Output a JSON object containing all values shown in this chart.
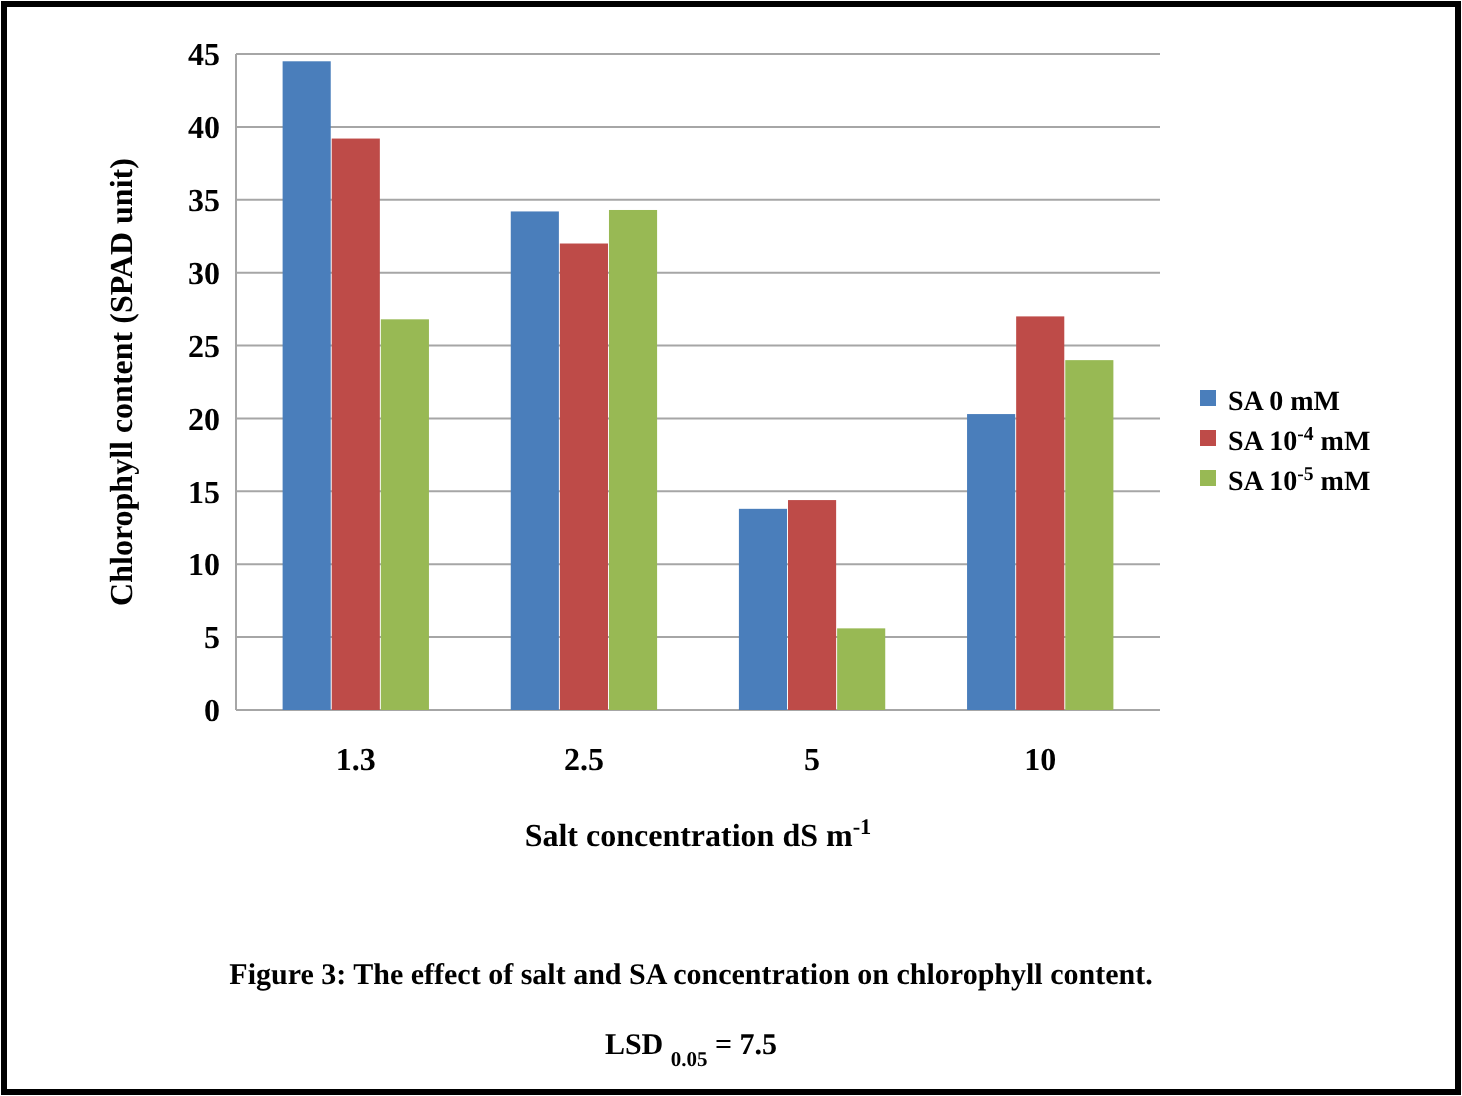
{
  "chart_data": {
    "type": "bar",
    "ylabel": "Chlorophyll content  (SPAD unit)",
    "xlabel": "Salt concentration dS m$^{-1}$",
    "categories": [
      "1.3",
      "2.5",
      "5",
      "10"
    ],
    "series": [
      {
        "name": "SA 0 mM",
        "color": "#4a7ebb",
        "values": [
          44.5,
          34.2,
          13.8,
          20.3
        ]
      },
      {
        "name": "SA 10$^{-4}$ mM",
        "color": "#be4b48",
        "values": [
          39.2,
          32,
          14.4,
          27
        ]
      },
      {
        "name": "SA 10$^{-5}$ mM",
        "color": "#98b954",
        "values": [
          26.8,
          34.3,
          5.6,
          24
        ]
      }
    ],
    "ylim": [
      0,
      45
    ],
    "yticks": [
      0,
      5,
      10,
      15,
      20,
      25,
      30,
      35,
      40,
      45
    ],
    "grid": "y",
    "legend": "right",
    "annotations": [
      "Figure 3: The effect of  salt and SA concentration on chlorophyll content.",
      "LSD $_{0.05}$ = 7.5"
    ]
  }
}
